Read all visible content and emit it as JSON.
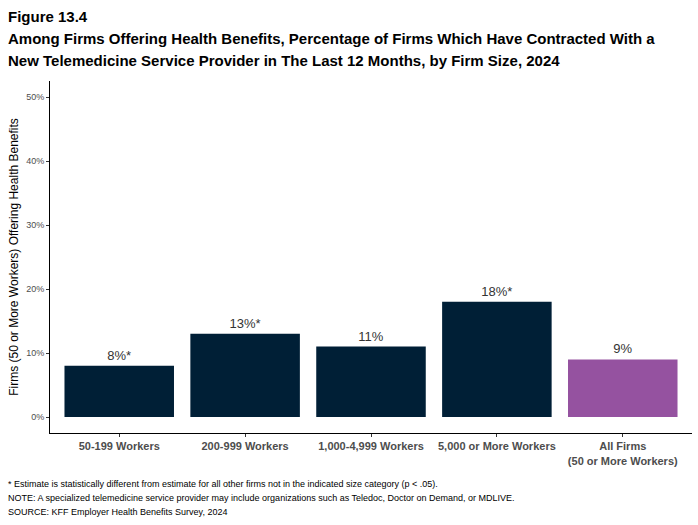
{
  "chart_data": {
    "type": "bar",
    "title": "Figure 13.4",
    "subtitle": [
      "Among Firms Offering Health Benefits, Percentage of Firms Which Have Contracted With a",
      "New Telemedicine Service Provider in The Last 12 Months, by Firm Size, 2024"
    ],
    "y_label": "Firms (50 or More Workers) Offering Health Benefits",
    "categories": [
      "50-199 Workers",
      "200-999 Workers",
      "1,000-4,999 Workers",
      "5,000 or More Workers",
      "All Firms\n(50 or More Workers)"
    ],
    "values": [
      8,
      13,
      11,
      18,
      9
    ],
    "value_labels": [
      "8%*",
      "13%*",
      "11%",
      "18%*",
      "9%"
    ],
    "colors": [
      "#001f36",
      "#001f36",
      "#001f36",
      "#001f36",
      "#9552a0"
    ],
    "data_labels": true,
    "ylim": [
      -2.5,
      52.5
    ],
    "yticks": [
      {
        "value": 0,
        "label": "0%"
      },
      {
        "value": 10,
        "label": "10%"
      },
      {
        "value": 20,
        "label": "20%"
      },
      {
        "value": 30,
        "label": "30%"
      },
      {
        "value": 40,
        "label": "40%"
      },
      {
        "value": 50,
        "label": "50%"
      }
    ],
    "grid": false,
    "notes": [
      "* Estimate is statistically different from estimate for all other firms not in the indicated size category (p < .05).",
      "NOTE: A specialized telemedicine service provider may include organizations such as Teledoc, Doctor on Demand, or MDLIVE.",
      "SOURCE: KFF Employer Health Benefits Survey, 2024"
    ]
  }
}
